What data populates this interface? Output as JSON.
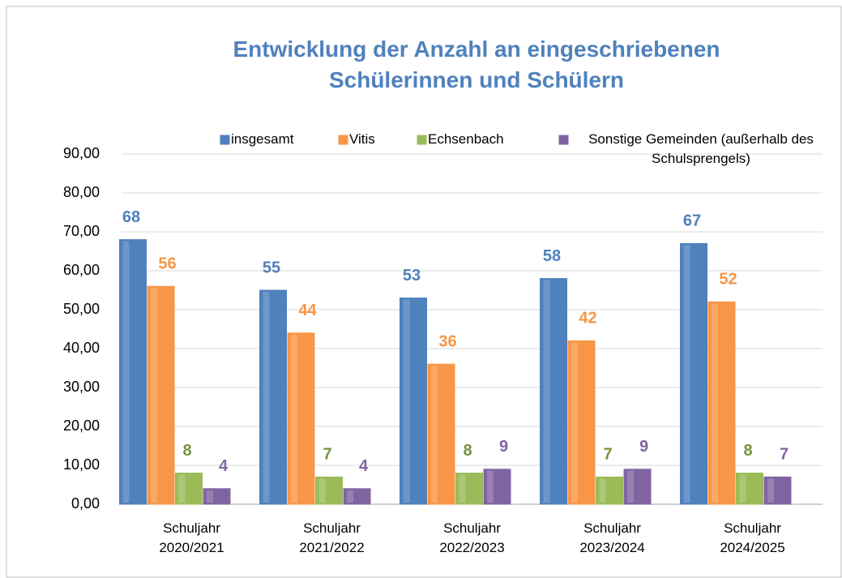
{
  "chart_data": {
    "type": "bar",
    "title": "Entwicklung der Anzahl an eingeschriebenen Schülerinnen und Schülern",
    "categories": [
      "Schuljahr 2020/2021",
      "Schuljahr 2021/2022",
      "Schuljahr 2022/2023",
      "Schuljahr 2023/2024",
      "Schuljahr 2024/2025"
    ],
    "series": [
      {
        "name": "insgesamt",
        "color": "#4f81bd",
        "values": [
          68,
          55,
          53,
          58,
          67
        ]
      },
      {
        "name": "Vitis",
        "color": "#f79646",
        "values": [
          56,
          44,
          36,
          42,
          52
        ]
      },
      {
        "name": "Echsenbach",
        "color": "#9bbb59",
        "values": [
          8,
          7,
          8,
          7,
          8
        ]
      },
      {
        "name": "Sonstige Gemeinden (außerhalb des Schulsprengels)",
        "color": "#8064a2",
        "values": [
          4,
          4,
          9,
          9,
          7
        ]
      }
    ],
    "ylim": [
      0,
      90
    ],
    "yticks": [
      {
        "value": 0,
        "label": "0,00"
      },
      {
        "value": 10,
        "label": "10,00"
      },
      {
        "value": 20,
        "label": "20,00"
      },
      {
        "value": 30,
        "label": "30,00"
      },
      {
        "value": 40,
        "label": "40,00"
      },
      {
        "value": 50,
        "label": "50,00"
      },
      {
        "value": 60,
        "label": "60,00"
      },
      {
        "value": 70,
        "label": "70,00"
      },
      {
        "value": 80,
        "label": "80,00"
      },
      {
        "value": 90,
        "label": "90,00"
      }
    ],
    "grid": true,
    "legend": "top"
  }
}
